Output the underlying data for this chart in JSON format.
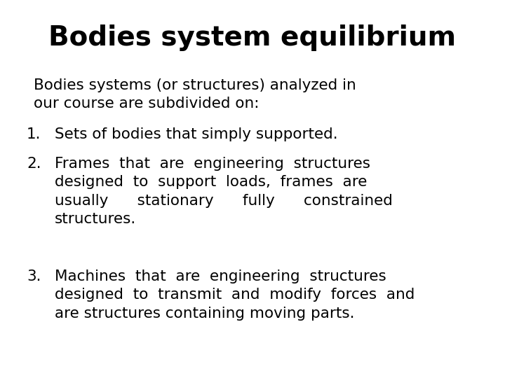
{
  "title": "Bodies system equilibrium",
  "background_color": "#ffffff",
  "text_color": "#000000",
  "title_fontsize": 28,
  "body_fontsize": 15.5,
  "intro_text": "Bodies systems (or structures) analyzed in\nour course are subdivided on:",
  "items": [
    {
      "number": "1.",
      "text": "Sets of bodies that simply supported."
    },
    {
      "number": "2.",
      "text": "Frames  that  are  engineering  structures\ndesigned  to  support  loads,  frames  are\nusually      stationary      fully      constrained\nstructures."
    },
    {
      "number": "3.",
      "text": "Machines  that  are  engineering  structures\ndesigned  to  transmit  and  modify  forces  and\nare structures containing moving parts."
    }
  ]
}
